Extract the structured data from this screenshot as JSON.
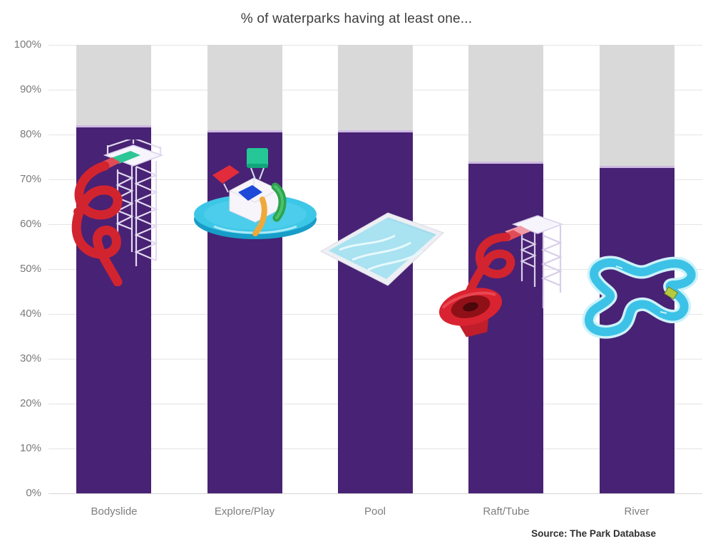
{
  "title": "% of waterparks having at least one...",
  "source": "Source: The Park Database",
  "y_axis": {
    "tick_labels": [
      "100%",
      "90%",
      "80%",
      "70%",
      "60%",
      "50%",
      "40%",
      "30%",
      "20%",
      "10%",
      "0%"
    ]
  },
  "chart_data": {
    "type": "bar",
    "title": "% of waterparks having at least one...",
    "categories": [
      "Bodyslide",
      "Explore/Play",
      "Pool",
      "Raft/Tube",
      "River"
    ],
    "values": [
      82,
      81,
      81,
      74,
      73
    ],
    "unit": "%",
    "ylim": [
      0,
      100
    ],
    "y_tick_step": 10,
    "grid": true,
    "legend": false,
    "stacked_remainder_to_100": true,
    "bar_color": "#482274",
    "remainder_color": "#D9D9D9",
    "icons": [
      "bodyslide-icon",
      "explore-play-icon",
      "pool-icon",
      "raft-tube-icon",
      "river-icon"
    ]
  },
  "colors": {
    "background": "#FFFFFF",
    "bar": "#482274",
    "bar_top_highlight": "#CDB9E2",
    "remainder": "#D9D9D9",
    "gridline": "#E4E4E4",
    "axis_text": "#7A7A7A",
    "title_text": "#3D3D3D",
    "source_text": "#2F2F2F",
    "slide_red": "#D2242F",
    "water_cyan": "#3CC7E7",
    "bucket_green": "#24C795",
    "pool_blue": "#A9E2F0"
  }
}
